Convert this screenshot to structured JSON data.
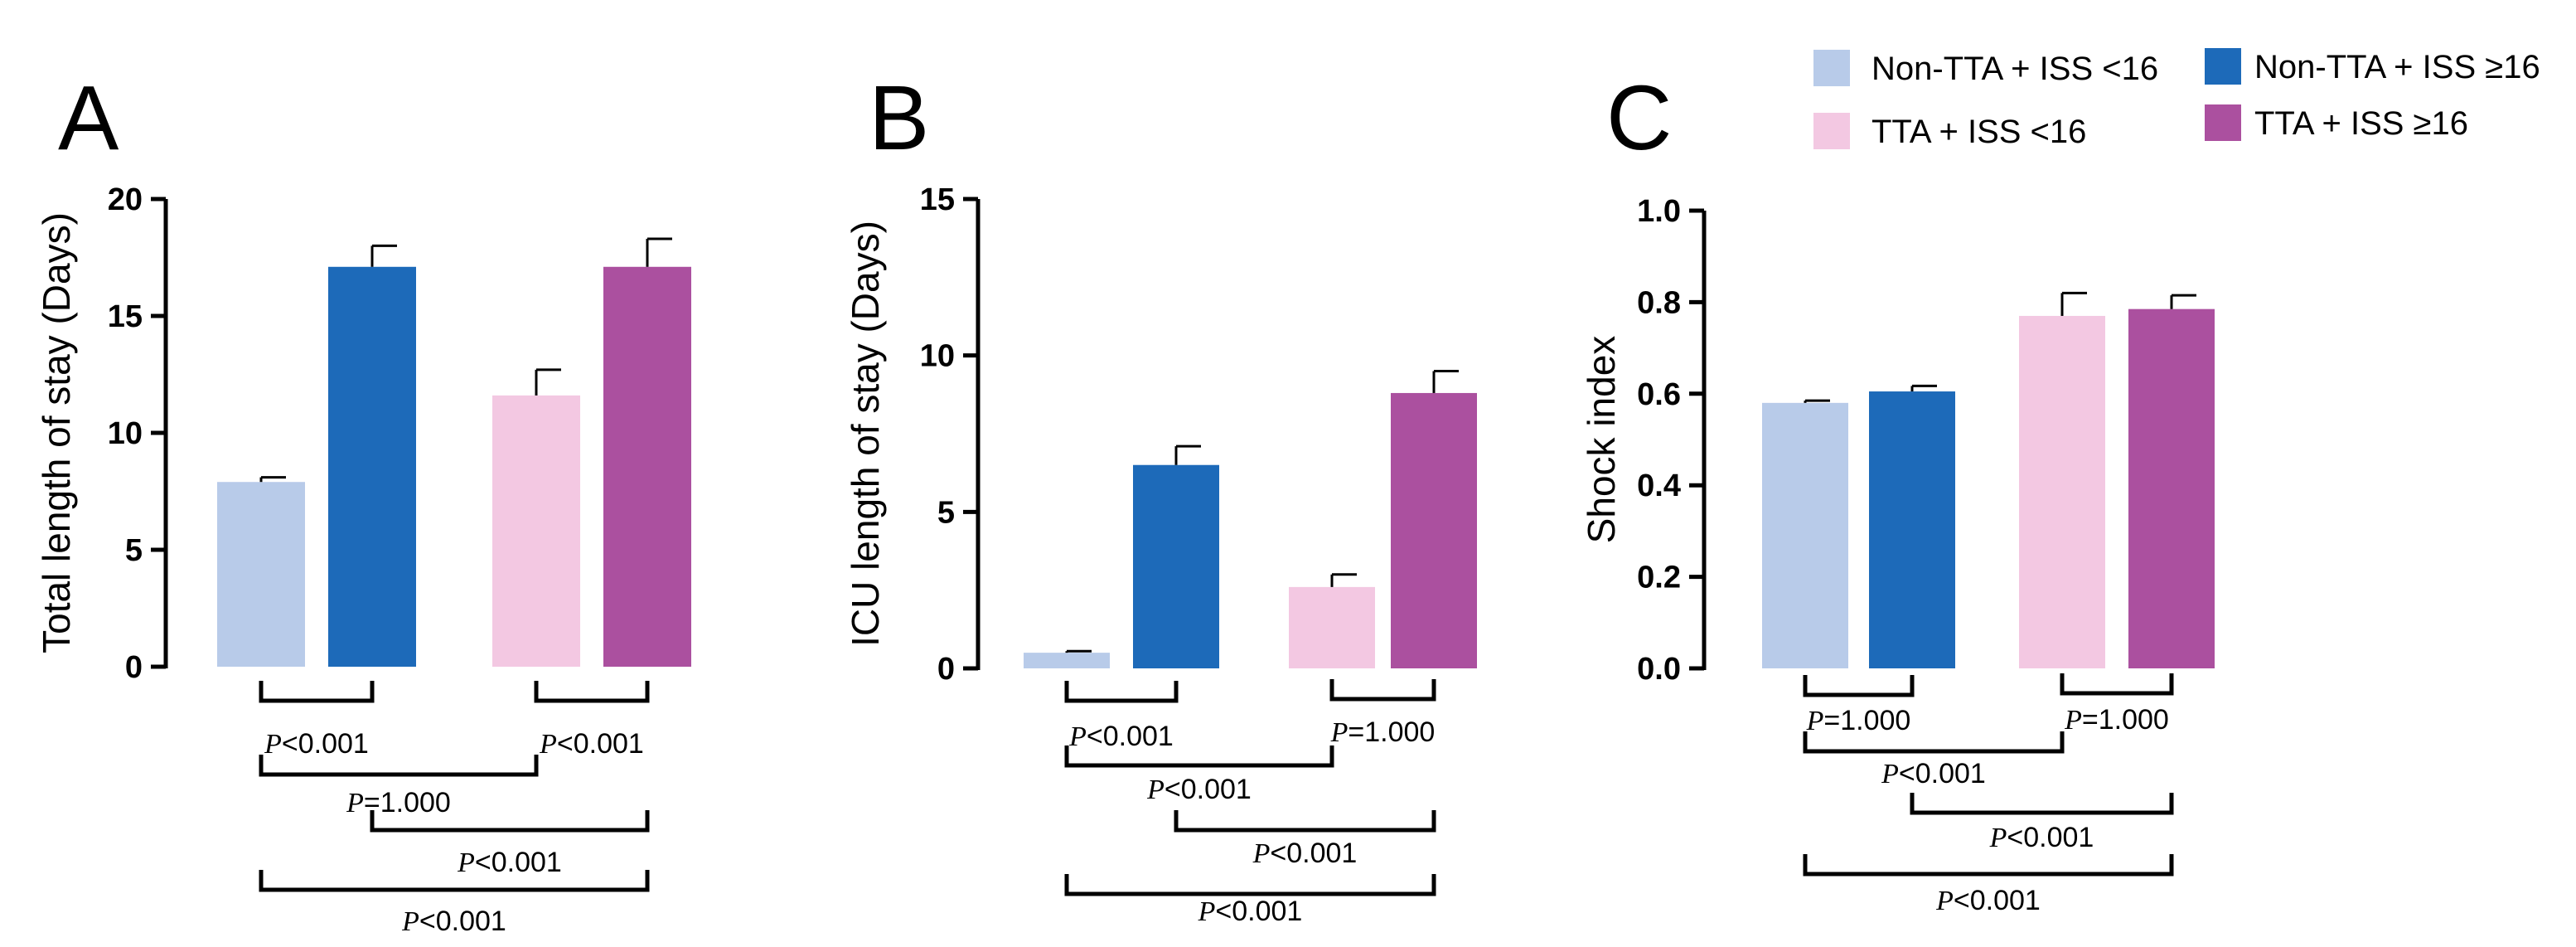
{
  "colors": {
    "non_tta_iss_lt16": "#b8cbe9",
    "non_tta_iss_ge16": "#1d6ab9",
    "tta_iss_lt16": "#f3c8e2",
    "tta_iss_ge16": "#ab509f"
  },
  "legend": [
    {
      "label": "Non-TTA + ISS <16",
      "color_key": "non_tta_iss_lt16"
    },
    {
      "label": "Non-TTA + ISS ≥16",
      "color_key": "non_tta_iss_ge16"
    },
    {
      "label": "TTA + ISS <16",
      "color_key": "tta_iss_lt16"
    },
    {
      "label": "TTA + ISS ≥16",
      "color_key": "tta_iss_ge16"
    }
  ],
  "chart_data": [
    {
      "panel": "A",
      "type": "bar",
      "ylabel": "Total length of stay (Days)",
      "ylim": [
        0,
        20
      ],
      "yticks": [
        "0",
        "5",
        "10",
        "15",
        "20"
      ],
      "yticks_values": [
        0,
        5,
        10,
        15,
        20
      ],
      "series": [
        {
          "name": "Non-TTA + ISS <16",
          "value": 7.9,
          "error": 0.2
        },
        {
          "name": "Non-TTA + ISS ≥16",
          "value": 17.1,
          "error": 0.9
        },
        {
          "name": "TTA + ISS <16",
          "value": 11.6,
          "error": 1.1
        },
        {
          "name": "TTA + ISS ≥16",
          "value": 17.1,
          "error": 1.2
        }
      ],
      "comparisons": [
        {
          "groups": [
            0,
            1
          ],
          "p": "P",
          "text": "<0.001"
        },
        {
          "groups": [
            2,
            3
          ],
          "p": "P",
          "text": "<0.001"
        },
        {
          "groups": [
            0,
            2
          ],
          "p": "P",
          "text": "=1.000"
        },
        {
          "groups": [
            1,
            3
          ],
          "p": "P",
          "text": "<0.001"
        },
        {
          "groups": [
            0,
            3
          ],
          "p": "P",
          "text": "<0.001"
        }
      ]
    },
    {
      "panel": "B",
      "type": "bar",
      "ylabel": "ICU length of stay (Days)",
      "ylim": [
        0,
        15
      ],
      "yticks": [
        "0",
        "5",
        "10",
        "15"
      ],
      "yticks_values": [
        0,
        5,
        10,
        15
      ],
      "series": [
        {
          "name": "Non-TTA + ISS <16",
          "value": 0.5,
          "error": 0.05
        },
        {
          "name": "Non-TTA + ISS ≥16",
          "value": 6.5,
          "error": 0.6
        },
        {
          "name": "TTA + ISS <16",
          "value": 2.6,
          "error": 0.4
        },
        {
          "name": "TTA + ISS ≥16",
          "value": 8.8,
          "error": 0.7
        }
      ],
      "comparisons": [
        {
          "groups": [
            0,
            1
          ],
          "p": "P",
          "text": "<0.001"
        },
        {
          "groups": [
            2,
            3
          ],
          "p": "P",
          "text": "=1.000"
        },
        {
          "groups": [
            0,
            2
          ],
          "p": "P",
          "text": "<0.001"
        },
        {
          "groups": [
            1,
            3
          ],
          "p": "P",
          "text": "<0.001"
        },
        {
          "groups": [
            0,
            3
          ],
          "p": "P",
          "text": "<0.001"
        }
      ]
    },
    {
      "panel": "C",
      "type": "bar",
      "ylabel": "Shock index",
      "ylim": [
        0,
        1.0
      ],
      "yticks": [
        "0.0",
        "0.2",
        "0.4",
        "0.6",
        "0.8",
        "1.0"
      ],
      "yticks_values": [
        0,
        0.2,
        0.4,
        0.6,
        0.8,
        1.0
      ],
      "series": [
        {
          "name": "Non-TTA + ISS <16",
          "value": 0.58,
          "error": 0.005
        },
        {
          "name": "Non-TTA + ISS ≥16",
          "value": 0.605,
          "error": 0.012
        },
        {
          "name": "TTA + ISS <16",
          "value": 0.77,
          "error": 0.05
        },
        {
          "name": "TTA + ISS ≥16",
          "value": 0.785,
          "error": 0.03
        }
      ],
      "comparisons": [
        {
          "groups": [
            0,
            1
          ],
          "p": "P",
          "text": "=1.000"
        },
        {
          "groups": [
            2,
            3
          ],
          "p": "P",
          "text": "=1.000"
        },
        {
          "groups": [
            0,
            2
          ],
          "p": "P",
          "text": "<0.001"
        },
        {
          "groups": [
            1,
            3
          ],
          "p": "P",
          "text": "<0.001"
        },
        {
          "groups": [
            0,
            3
          ],
          "p": "P",
          "text": "<0.001"
        }
      ]
    }
  ]
}
